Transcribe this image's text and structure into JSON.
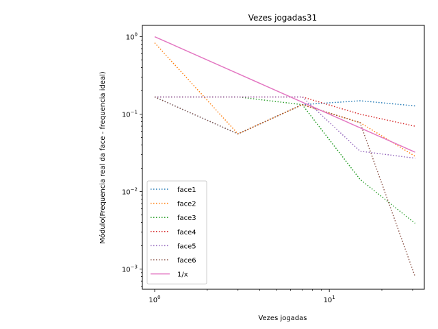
{
  "chart_data": {
    "type": "line",
    "title": "Vezes jogadas31",
    "xlabel": "Vezes jogadas",
    "ylabel": "Módulo(Frequencia real da face - frequencia ideal)",
    "xscale": "log",
    "yscale": "log",
    "xlim": [
      0.85,
      35
    ],
    "ylim": [
      0.00055,
      1.4
    ],
    "x": [
      1,
      3,
      7,
      15,
      31
    ],
    "x_ticks": [
      {
        "value": 1,
        "base": "10",
        "exp": "0"
      },
      {
        "value": 10,
        "base": "10",
        "exp": "1"
      }
    ],
    "y_ticks": [
      {
        "value": 0.001,
        "base": "10",
        "exp": "−3"
      },
      {
        "value": 0.01,
        "base": "10",
        "exp": "−2"
      },
      {
        "value": 0.1,
        "base": "10",
        "exp": "−1"
      },
      {
        "value": 1,
        "base": "10",
        "exp": "0"
      }
    ],
    "legend_position": "lower-left",
    "grid": false,
    "series": [
      {
        "name": "face1",
        "style": "dotted",
        "color": "#1f77b4",
        "values": [
          0.1667,
          0.0556,
          0.1327,
          0.1489,
          0.1278
        ]
      },
      {
        "name": "face2",
        "style": "dotted",
        "color": "#ff7f0e",
        "values": [
          0.8333,
          0.0556,
          0.1327,
          0.0778,
          0.0286
        ]
      },
      {
        "name": "face3",
        "style": "dotted",
        "color": "#2ca02c",
        "values": [
          0.1667,
          0.1667,
          0.1327,
          0.0144,
          0.0039
        ]
      },
      {
        "name": "face4",
        "style": "dotted",
        "color": "#d62728",
        "values": [
          0.1667,
          0.1667,
          0.1667,
          0.1,
          0.0699
        ]
      },
      {
        "name": "face5",
        "style": "dotted",
        "color": "#9467bd",
        "values": [
          0.1667,
          0.1667,
          0.1667,
          0.0333,
          0.027
        ]
      },
      {
        "name": "face6",
        "style": "dotted",
        "color": "#8c564b",
        "values": [
          0.1667,
          0.0556,
          0.1327,
          0.0778,
          0.0008
        ]
      },
      {
        "name": "1/x",
        "style": "solid",
        "color": "#e377c2",
        "values": [
          1.0,
          0.3333,
          0.1429,
          0.0667,
          0.0323
        ]
      }
    ]
  }
}
